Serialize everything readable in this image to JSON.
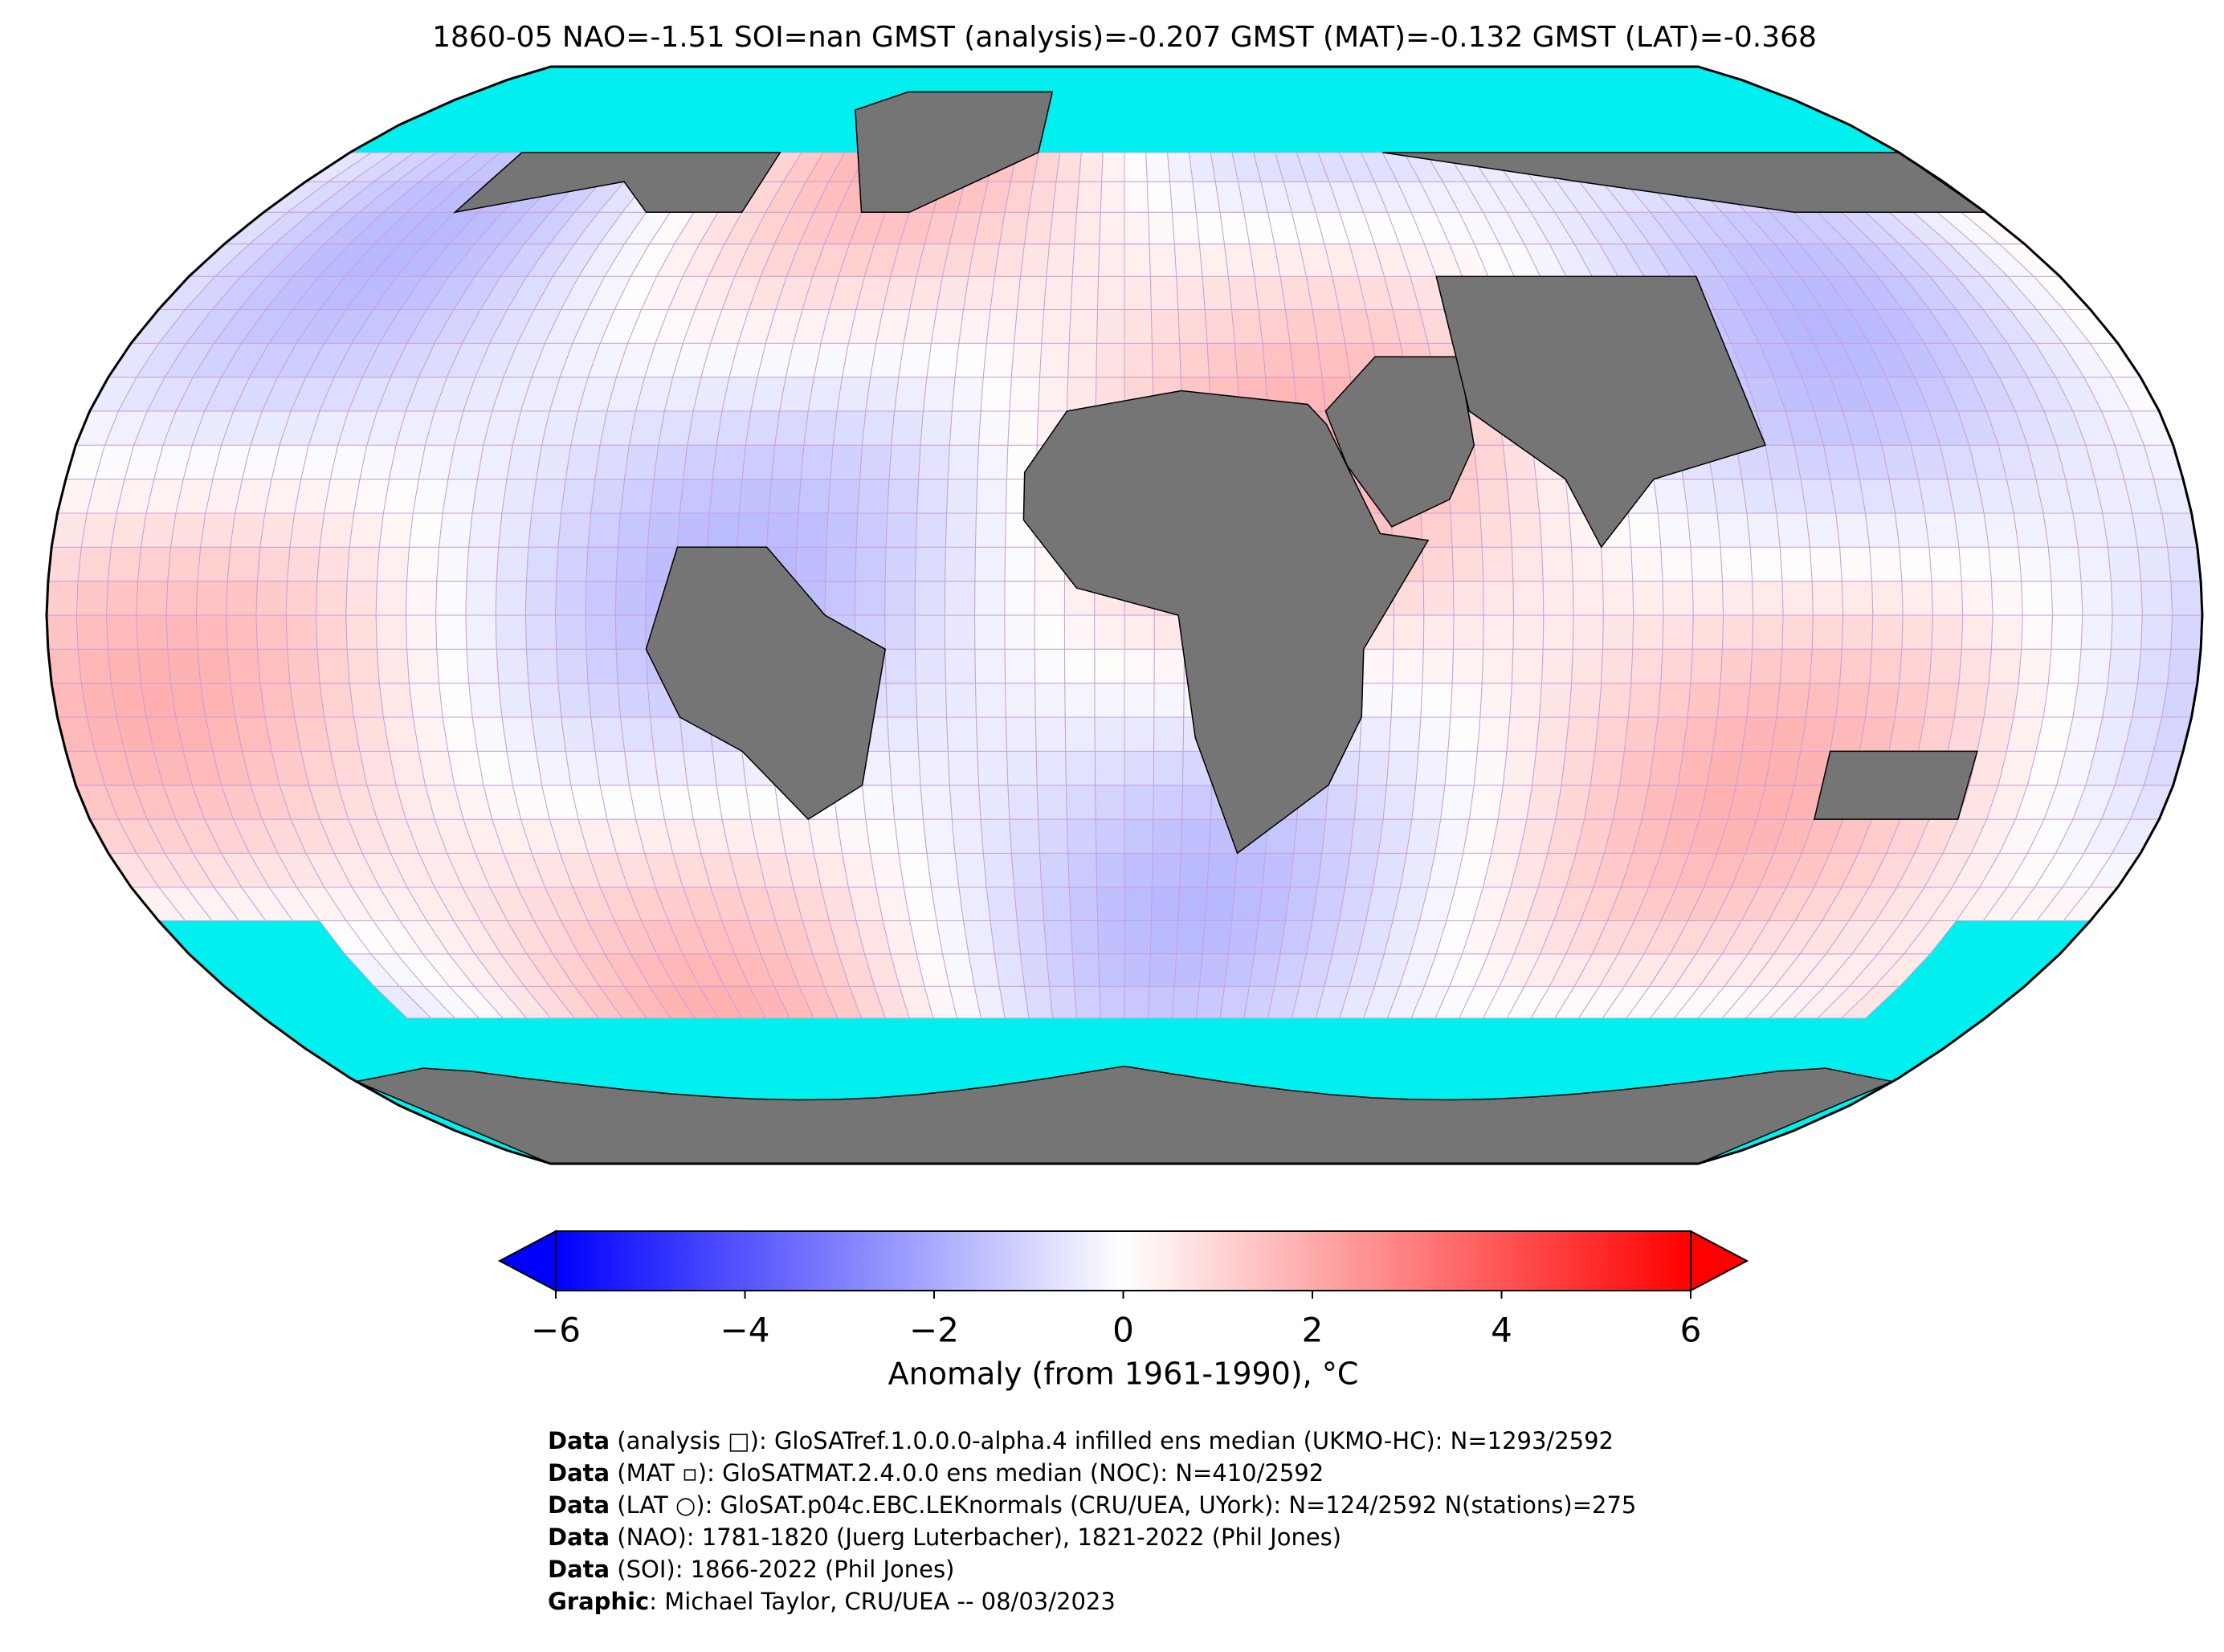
{
  "title": "1860-05 NAO=-1.51 SOI=nan GMST (analysis)=-0.207 GMST (MAT)=-0.132 GMST (LAT)=-0.368",
  "colorbar": {
    "label": "Anomaly (from 1961-1990), °C",
    "lim": [
      -6,
      6
    ],
    "ticks": [
      {
        "value": -6,
        "label": "−6"
      },
      {
        "value": -4,
        "label": "−4"
      },
      {
        "value": -2,
        "label": "−2"
      },
      0,
      2,
      4,
      6
    ],
    "colors": [
      "#0000ff",
      "#ffffff",
      "#ff0000"
    ]
  },
  "footer": [
    {
      "bold": "Data",
      "text": " (analysis □): GloSATref.1.0.0.0-alpha.4 infilled ens median (UKMO-HC): N=1293/2592"
    },
    {
      "bold": "Data",
      "text": " (MAT ▫): GloSATMAT.2.4.0.0 ens median (NOC): N=410/2592"
    },
    {
      "bold": "Data",
      "text": " (LAT ○): GloSAT.p04c.EBC.LEKnormals (CRU/UEA, UYork): N=124/2592 N(stations)=275"
    },
    {
      "bold": "Data",
      "text": " (NAO): 1781-1820 (Juerg Luterbacher), 1821-2022 (Phil Jones)"
    },
    {
      "bold": "Data",
      "text": " (SOI): 1866-2022 (Phil Jones)"
    },
    {
      "bold": "Graphic",
      "text": ": Michael Taylor, CRU/UEA -- 08/03/2023"
    }
  ]
}
